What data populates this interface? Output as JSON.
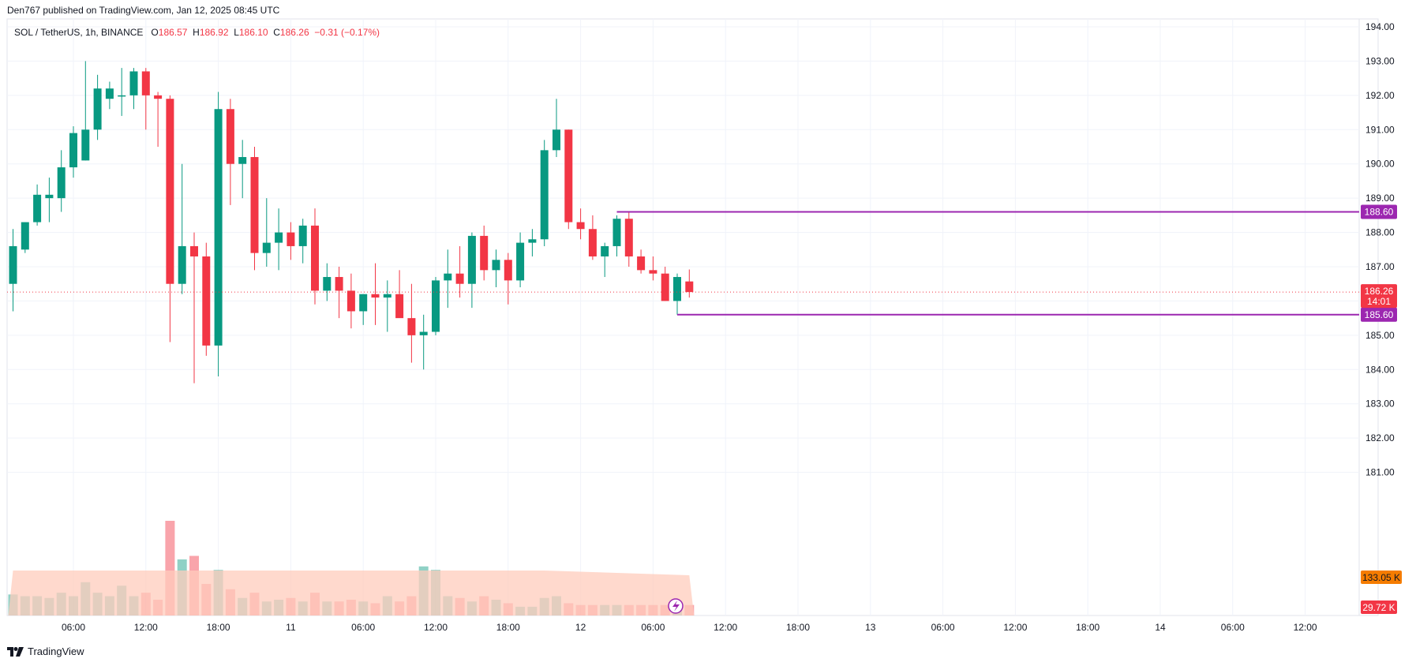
{
  "header": {
    "published": "Den767 published on TradingView.com, Jan 12, 2025 08:45 UTC"
  },
  "legend": {
    "symbol": "SOL / TetherUS, 1h, BINANCE",
    "o_label": "O",
    "o_value": "186.57",
    "h_label": "H",
    "h_value": "186.92",
    "l_label": "L",
    "l_value": "186.10",
    "c_label": "C",
    "c_value": "186.26",
    "change": "−0.31 (−0.17%)"
  },
  "footer": {
    "brand": "TradingView"
  },
  "colors": {
    "up": "#089981",
    "down": "#f23645",
    "level_line": "#9c27b0",
    "volume_ma": "#ffccbc",
    "volume_ma_label": "#f57c00",
    "volume_label_bg": "#f23645",
    "price_label_bg": "#f23645"
  },
  "chart_data": {
    "type": "candlestick",
    "timeframe": "1h",
    "y_axis": {
      "range": [
        180,
        194
      ],
      "ticks": [
        "194.00",
        "193.00",
        "192.00",
        "191.00",
        "190.00",
        "189.00",
        "188.00",
        "187.00",
        "186.00",
        "185.00",
        "184.00",
        "183.00",
        "182.00",
        "181.00"
      ]
    },
    "x_axis": {
      "ticks": [
        "06:00",
        "12:00",
        "18:00",
        "11",
        "06:00",
        "12:00",
        "18:00",
        "12",
        "06:00",
        "12:00",
        "18:00",
        "13",
        "06:00",
        "12:00",
        "18:00",
        "14",
        "06:00",
        "12:00"
      ],
      "tick_index": [
        5,
        11,
        17,
        23,
        29,
        35,
        41,
        47,
        53,
        59,
        65,
        71,
        77,
        83,
        89,
        95,
        101,
        107
      ]
    },
    "candles": [
      {
        "o": 186.5,
        "h": 188.1,
        "l": 185.7,
        "c": 187.6,
        "v": 0.6
      },
      {
        "o": 187.5,
        "h": 188.3,
        "l": 187.4,
        "c": 188.3,
        "v": 0.55
      },
      {
        "o": 188.3,
        "h": 189.4,
        "l": 188.2,
        "c": 189.1,
        "v": 0.55
      },
      {
        "o": 189.0,
        "h": 189.6,
        "l": 188.3,
        "c": 189.1,
        "v": 0.5
      },
      {
        "o": 189.0,
        "h": 190.4,
        "l": 188.6,
        "c": 189.9,
        "v": 0.65
      },
      {
        "o": 189.9,
        "h": 191.1,
        "l": 189.6,
        "c": 190.9,
        "v": 0.55
      },
      {
        "o": 190.1,
        "h": 193.0,
        "l": 190.1,
        "c": 191.0,
        "v": 0.95
      },
      {
        "o": 191.0,
        "h": 192.6,
        "l": 190.7,
        "c": 192.2,
        "v": 0.65
      },
      {
        "o": 191.9,
        "h": 192.4,
        "l": 191.6,
        "c": 192.2,
        "v": 0.55
      },
      {
        "o": 192.0,
        "h": 192.8,
        "l": 191.4,
        "c": 192.0,
        "v": 0.85
      },
      {
        "o": 192.0,
        "h": 192.8,
        "l": 191.6,
        "c": 192.7,
        "v": 0.55
      },
      {
        "o": 192.7,
        "h": 192.8,
        "l": 191.0,
        "c": 192.0,
        "v": 0.65
      },
      {
        "o": 192.0,
        "h": 192.1,
        "l": 190.5,
        "c": 191.9,
        "v": 0.45
      },
      {
        "o": 191.9,
        "h": 192.0,
        "l": 184.8,
        "c": 186.5,
        "v": 2.7
      },
      {
        "o": 186.5,
        "h": 190.0,
        "l": 186.2,
        "c": 187.6,
        "v": 1.6
      },
      {
        "o": 187.6,
        "h": 188.0,
        "l": 183.6,
        "c": 187.3,
        "v": 1.7
      },
      {
        "o": 187.3,
        "h": 187.7,
        "l": 184.4,
        "c": 184.7,
        "v": 0.9
      },
      {
        "o": 184.7,
        "h": 192.1,
        "l": 183.8,
        "c": 191.6,
        "v": 1.3
      },
      {
        "o": 191.6,
        "h": 191.9,
        "l": 188.8,
        "c": 190.0,
        "v": 0.75
      },
      {
        "o": 190.0,
        "h": 190.7,
        "l": 189.0,
        "c": 190.2,
        "v": 0.5
      },
      {
        "o": 190.2,
        "h": 190.5,
        "l": 186.9,
        "c": 187.4,
        "v": 0.65
      },
      {
        "o": 187.4,
        "h": 189.0,
        "l": 187.0,
        "c": 187.7,
        "v": 0.4
      },
      {
        "o": 187.7,
        "h": 188.7,
        "l": 186.9,
        "c": 188.0,
        "v": 0.45
      },
      {
        "o": 188.0,
        "h": 188.3,
        "l": 187.2,
        "c": 187.6,
        "v": 0.5
      },
      {
        "o": 187.6,
        "h": 188.4,
        "l": 187.1,
        "c": 188.2,
        "v": 0.4
      },
      {
        "o": 188.2,
        "h": 188.7,
        "l": 185.9,
        "c": 186.3,
        "v": 0.65
      },
      {
        "o": 186.3,
        "h": 187.1,
        "l": 186.0,
        "c": 186.7,
        "v": 0.4
      },
      {
        "o": 186.7,
        "h": 187.0,
        "l": 185.5,
        "c": 186.3,
        "v": 0.4
      },
      {
        "o": 186.3,
        "h": 186.8,
        "l": 185.2,
        "c": 185.7,
        "v": 0.45
      },
      {
        "o": 185.7,
        "h": 186.2,
        "l": 185.3,
        "c": 186.2,
        "v": 0.4
      },
      {
        "o": 186.2,
        "h": 187.1,
        "l": 185.3,
        "c": 186.1,
        "v": 0.35
      },
      {
        "o": 186.1,
        "h": 186.6,
        "l": 185.1,
        "c": 186.2,
        "v": 0.55
      },
      {
        "o": 186.2,
        "h": 186.9,
        "l": 185.6,
        "c": 185.5,
        "v": 0.4
      },
      {
        "o": 185.5,
        "h": 186.5,
        "l": 184.2,
        "c": 185.0,
        "v": 0.55
      },
      {
        "o": 185.0,
        "h": 185.6,
        "l": 184.0,
        "c": 185.1,
        "v": 1.4
      },
      {
        "o": 185.1,
        "h": 186.7,
        "l": 185.0,
        "c": 186.6,
        "v": 1.3
      },
      {
        "o": 186.6,
        "h": 187.5,
        "l": 185.8,
        "c": 186.8,
        "v": 0.55
      },
      {
        "o": 186.8,
        "h": 187.6,
        "l": 186.1,
        "c": 186.5,
        "v": 0.5
      },
      {
        "o": 186.5,
        "h": 188.0,
        "l": 185.8,
        "c": 187.9,
        "v": 0.4
      },
      {
        "o": 187.9,
        "h": 188.2,
        "l": 186.6,
        "c": 186.9,
        "v": 0.55
      },
      {
        "o": 186.9,
        "h": 187.5,
        "l": 186.4,
        "c": 187.2,
        "v": 0.45
      },
      {
        "o": 187.2,
        "h": 187.4,
        "l": 185.9,
        "c": 186.6,
        "v": 0.35
      },
      {
        "o": 186.6,
        "h": 188.0,
        "l": 186.4,
        "c": 187.7,
        "v": 0.25
      },
      {
        "o": 187.7,
        "h": 188.1,
        "l": 187.3,
        "c": 187.8,
        "v": 0.25
      },
      {
        "o": 187.8,
        "h": 190.7,
        "l": 187.6,
        "c": 190.4,
        "v": 0.5
      },
      {
        "o": 190.4,
        "h": 191.9,
        "l": 190.2,
        "c": 191.0,
        "v": 0.55
      },
      {
        "o": 191.0,
        "h": 191.0,
        "l": 188.1,
        "c": 188.3,
        "v": 0.35
      },
      {
        "o": 188.3,
        "h": 188.7,
        "l": 187.8,
        "c": 188.1,
        "v": 0.3
      },
      {
        "o": 188.1,
        "h": 188.5,
        "l": 187.2,
        "c": 187.3,
        "v": 0.3
      },
      {
        "o": 187.3,
        "h": 187.7,
        "l": 186.7,
        "c": 187.6,
        "v": 0.3
      },
      {
        "o": 187.6,
        "h": 188.5,
        "l": 187.3,
        "c": 188.4,
        "v": 0.3
      },
      {
        "o": 188.4,
        "h": 188.6,
        "l": 187.0,
        "c": 187.3,
        "v": 0.3
      },
      {
        "o": 187.3,
        "h": 187.5,
        "l": 186.8,
        "c": 186.9,
        "v": 0.3
      },
      {
        "o": 186.9,
        "h": 187.3,
        "l": 186.6,
        "c": 186.8,
        "v": 0.3
      },
      {
        "o": 186.8,
        "h": 187.0,
        "l": 186.0,
        "c": 186.0,
        "v": 0.3
      },
      {
        "o": 186.0,
        "h": 186.8,
        "l": 185.6,
        "c": 186.7,
        "v": 0.35
      },
      {
        "o": 186.57,
        "h": 186.92,
        "l": 186.1,
        "c": 186.26,
        "v": 0.3
      }
    ],
    "levels": [
      {
        "name": "resistance",
        "value": 188.6,
        "label": "188.60",
        "from_index": 50
      },
      {
        "name": "support",
        "value": 185.6,
        "label": "185.60",
        "from_index": 55
      }
    ],
    "last_price": {
      "value": 186.26,
      "label": "186.26",
      "countdown": "14:01"
    },
    "volume_labels": {
      "ma": "133.05 K",
      "last": "29.72 K"
    }
  }
}
